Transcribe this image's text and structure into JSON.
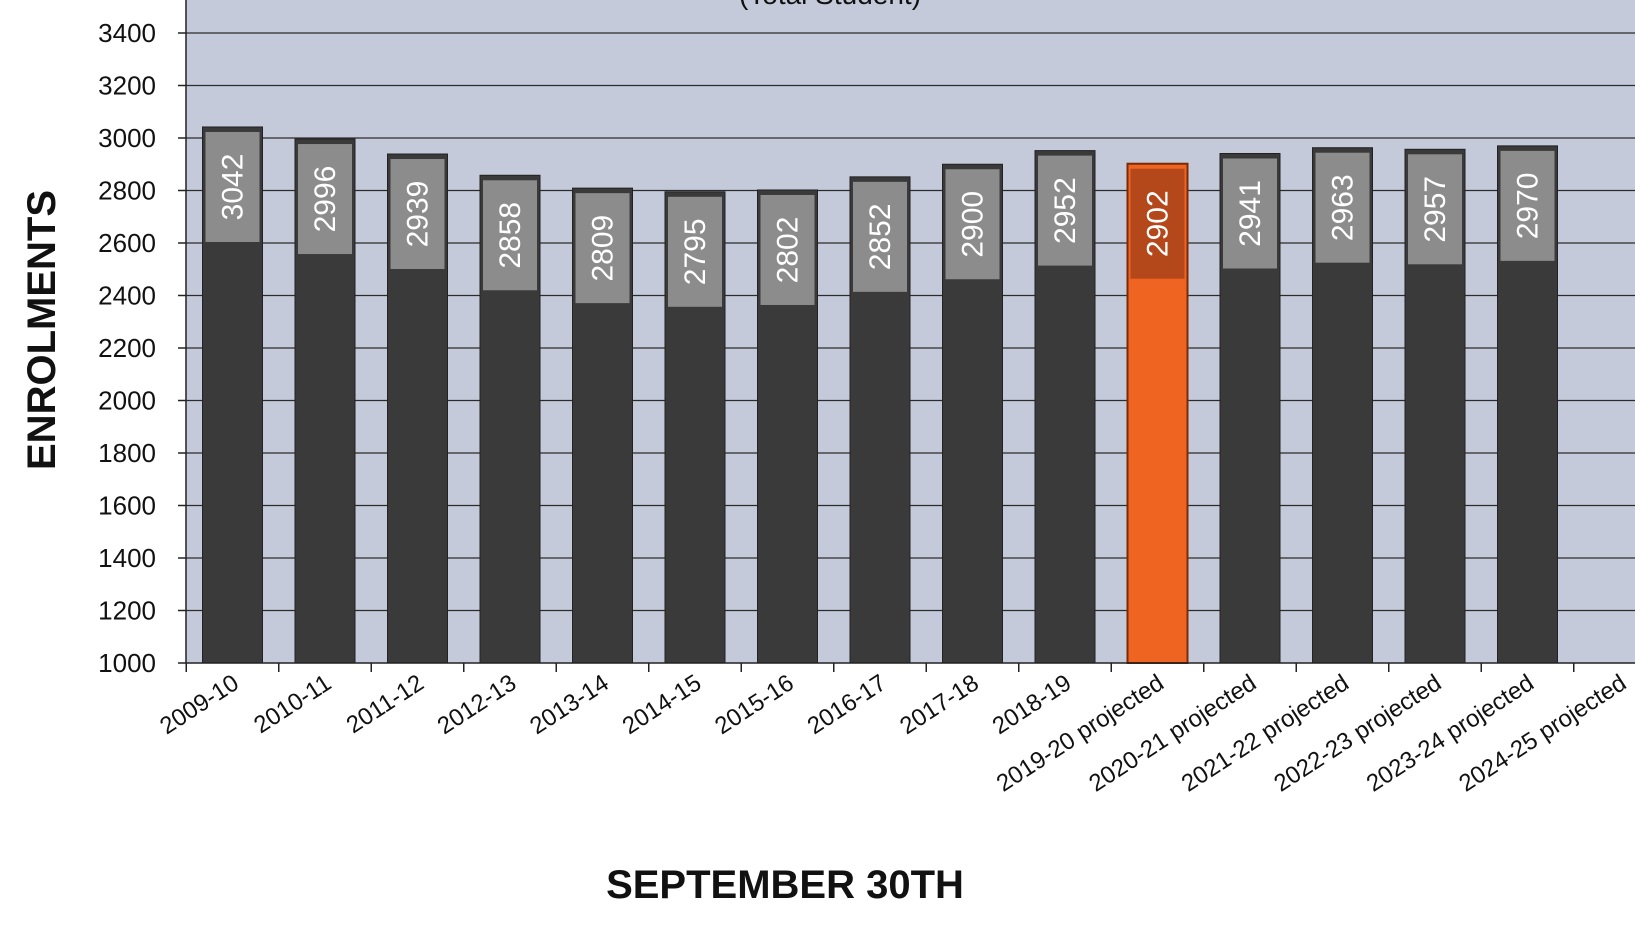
{
  "chart_data": {
    "type": "bar",
    "title": "(Total Student)",
    "xlabel": "SEPTEMBER 30TH",
    "ylabel": "ENROLMENTS",
    "ylim": [
      1000,
      3400
    ],
    "yticks": [
      1000,
      1200,
      1400,
      1600,
      1800,
      2000,
      2200,
      2400,
      2600,
      2800,
      3000,
      3200,
      3400
    ],
    "grid": true,
    "categories": [
      "2009-10",
      "2010-11",
      "2011-12",
      "2012-13",
      "2013-14",
      "2014-15",
      "2015-16",
      "2016-17",
      "2017-18",
      "2018-19",
      "2019-20 projected",
      "2020-21 projected",
      "2021-22 projected",
      "2022-23 projected",
      "2023-24 projected",
      "2024-25 projected"
    ],
    "values": [
      3042,
      2996,
      2939,
      2858,
      2809,
      2795,
      2802,
      2852,
      2900,
      2952,
      2902,
      2941,
      2963,
      2957,
      2970,
      null
    ],
    "highlight": "2019-20 projected",
    "colors": {
      "plot_background": "#c4cad9",
      "bar": "#3a3a3a",
      "bar_label_band": "#8c8c8c",
      "highlight_bar": "#ee6420",
      "highlight_label_band": "#b5481b",
      "gridline": "#2c2c2c"
    }
  }
}
